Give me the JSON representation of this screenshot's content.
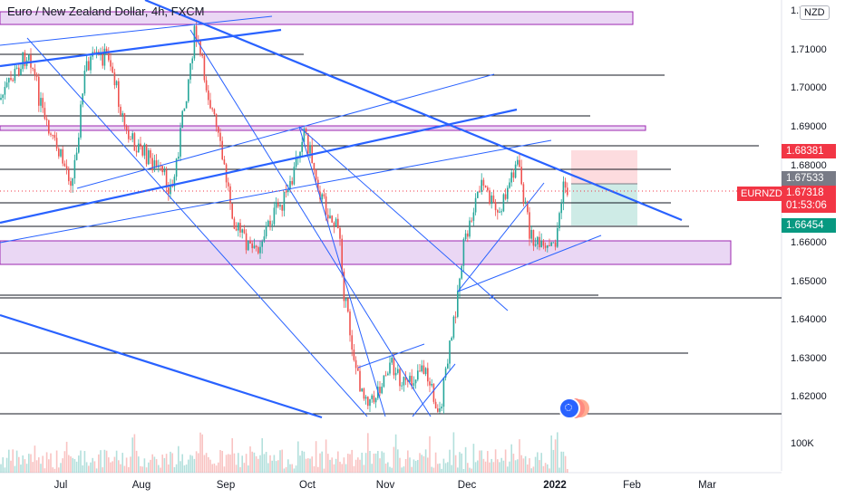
{
  "header": {
    "title": "Euro / New Zealand Dollar, 4h, FXCM",
    "currency_badge": "NZD",
    "symbol_tag": "EURNZD"
  },
  "colors": {
    "up": "#26a69a",
    "down": "#ef5350",
    "trendline": "#2962ff",
    "zone_fill": "#e1c6f0",
    "zone_border": "#9c27b0",
    "price_line": "#f23645"
  },
  "price_axis": {
    "ticks": [
      "1.72000",
      "1.71000",
      "1.70000",
      "1.69000",
      "1.68000",
      "1.67000",
      "1.66000",
      "1.65000",
      "1.64000",
      "1.63000",
      "1.62000"
    ],
    "volume_tick": "100K"
  },
  "price_tags": {
    "target": "1.68381",
    "entry": "1.67533",
    "current": "1.67318",
    "countdown": "01:53:06",
    "stop": "1.66454"
  },
  "time_axis": {
    "labels": [
      "Jul",
      "Aug",
      "Sep",
      "Oct",
      "Nov",
      "Dec",
      "2022",
      "Feb",
      "Mar"
    ]
  },
  "icons": {
    "events": "economic-events-icon"
  }
}
